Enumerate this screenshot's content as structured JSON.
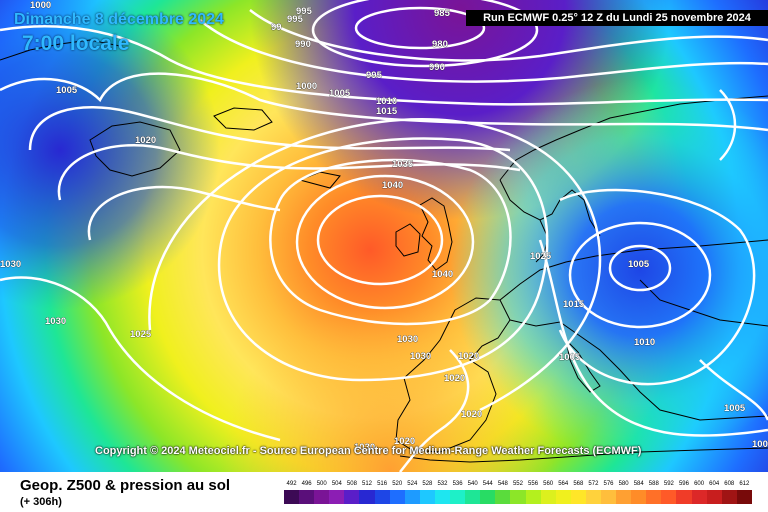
{
  "header": {
    "date": "Dimanche 8 décembre 2024",
    "local_time": "7:00 locale",
    "run_info": "Run ECMWF 0.25° 12 Z du Lundi 25 novembre 2024"
  },
  "copyright": "Copyright © 2024 Meteociel.fr - Source European Centre for Medium-Range Weather Forecasts (ECMWF)",
  "footer": {
    "parameter": "Geop. Z500 & pression au sol",
    "lead_time": "(+ 306h)"
  },
  "colors": {
    "land_outline": "#000000",
    "isobar": "#ffffff",
    "title_text": "#2fb9ff"
  },
  "legend": {
    "labels": [
      "492",
      "496",
      "500",
      "504",
      "508",
      "512",
      "516",
      "520",
      "524",
      "528",
      "532",
      "536",
      "540",
      "544",
      "548",
      "552",
      "556",
      "560",
      "564",
      "568",
      "572",
      "576",
      "580",
      "584",
      "588",
      "592",
      "596",
      "600",
      "604",
      "608",
      "612"
    ],
    "colors": [
      "#3c0a55",
      "#5a0f7a",
      "#7a1496",
      "#8c1eb4",
      "#5a1ec8",
      "#2828d2",
      "#1e46e6",
      "#1e6eff",
      "#1e9bff",
      "#1ec8ff",
      "#1ee6f0",
      "#1ef0c8",
      "#1ee696",
      "#28dc64",
      "#5adc3c",
      "#8ce628",
      "#b4f01e",
      "#dcf01e",
      "#f0f01e",
      "#ffe628",
      "#ffd23c",
      "#ffbe3c",
      "#ffa032",
      "#ff8c28",
      "#ff7028",
      "#ff5a28",
      "#f03c28",
      "#dc2828",
      "#c81e1e",
      "#a01414",
      "#780a0a"
    ]
  },
  "map": {
    "isobar_labels": [
      {
        "id": "995-a",
        "text": "995"
      },
      {
        "id": "995-b",
        "text": "995"
      },
      {
        "id": "99x",
        "text": "99"
      },
      {
        "id": "990-a",
        "text": "990"
      },
      {
        "id": "985",
        "text": "985"
      },
      {
        "id": "980",
        "text": "980"
      },
      {
        "id": "990-b",
        "text": "990"
      },
      {
        "id": "995-c",
        "text": "995"
      },
      {
        "id": "1000-a",
        "text": "1000"
      },
      {
        "id": "1000-b",
        "text": "1000"
      },
      {
        "id": "1005-a",
        "text": "1005"
      },
      {
        "id": "1005-b",
        "text": "1005"
      },
      {
        "id": "1010-a",
        "text": "1010"
      },
      {
        "id": "1015-a",
        "text": "1015"
      },
      {
        "id": "1020-a",
        "text": "1020"
      },
      {
        "id": "1035",
        "text": "1035"
      },
      {
        "id": "1040-a",
        "text": "1040"
      },
      {
        "id": "1040-b",
        "text": "1040"
      },
      {
        "id": "1025-a",
        "text": "1025"
      },
      {
        "id": "1005-c",
        "text": "1005"
      },
      {
        "id": "1015-b",
        "text": "1015"
      },
      {
        "id": "1010-b",
        "text": "1010"
      },
      {
        "id": "1005-d",
        "text": "1005"
      },
      {
        "id": "1005-e",
        "text": "1005"
      },
      {
        "id": "1030-a",
        "text": "1030"
      },
      {
        "id": "1030-b",
        "text": "1030"
      },
      {
        "id": "1025-b",
        "text": "1025"
      },
      {
        "id": "1030-c",
        "text": "1030"
      },
      {
        "id": "1030-d",
        "text": "1030"
      },
      {
        "id": "1020-b",
        "text": "1020"
      },
      {
        "id": "1020-c",
        "text": "1020"
      },
      {
        "id": "1020-d",
        "text": "1020"
      },
      {
        "id": "1020-e",
        "text": "1020"
      },
      {
        "id": "1030-e",
        "text": "1030"
      },
      {
        "id": "1000-c",
        "text": "1000"
      }
    ]
  }
}
